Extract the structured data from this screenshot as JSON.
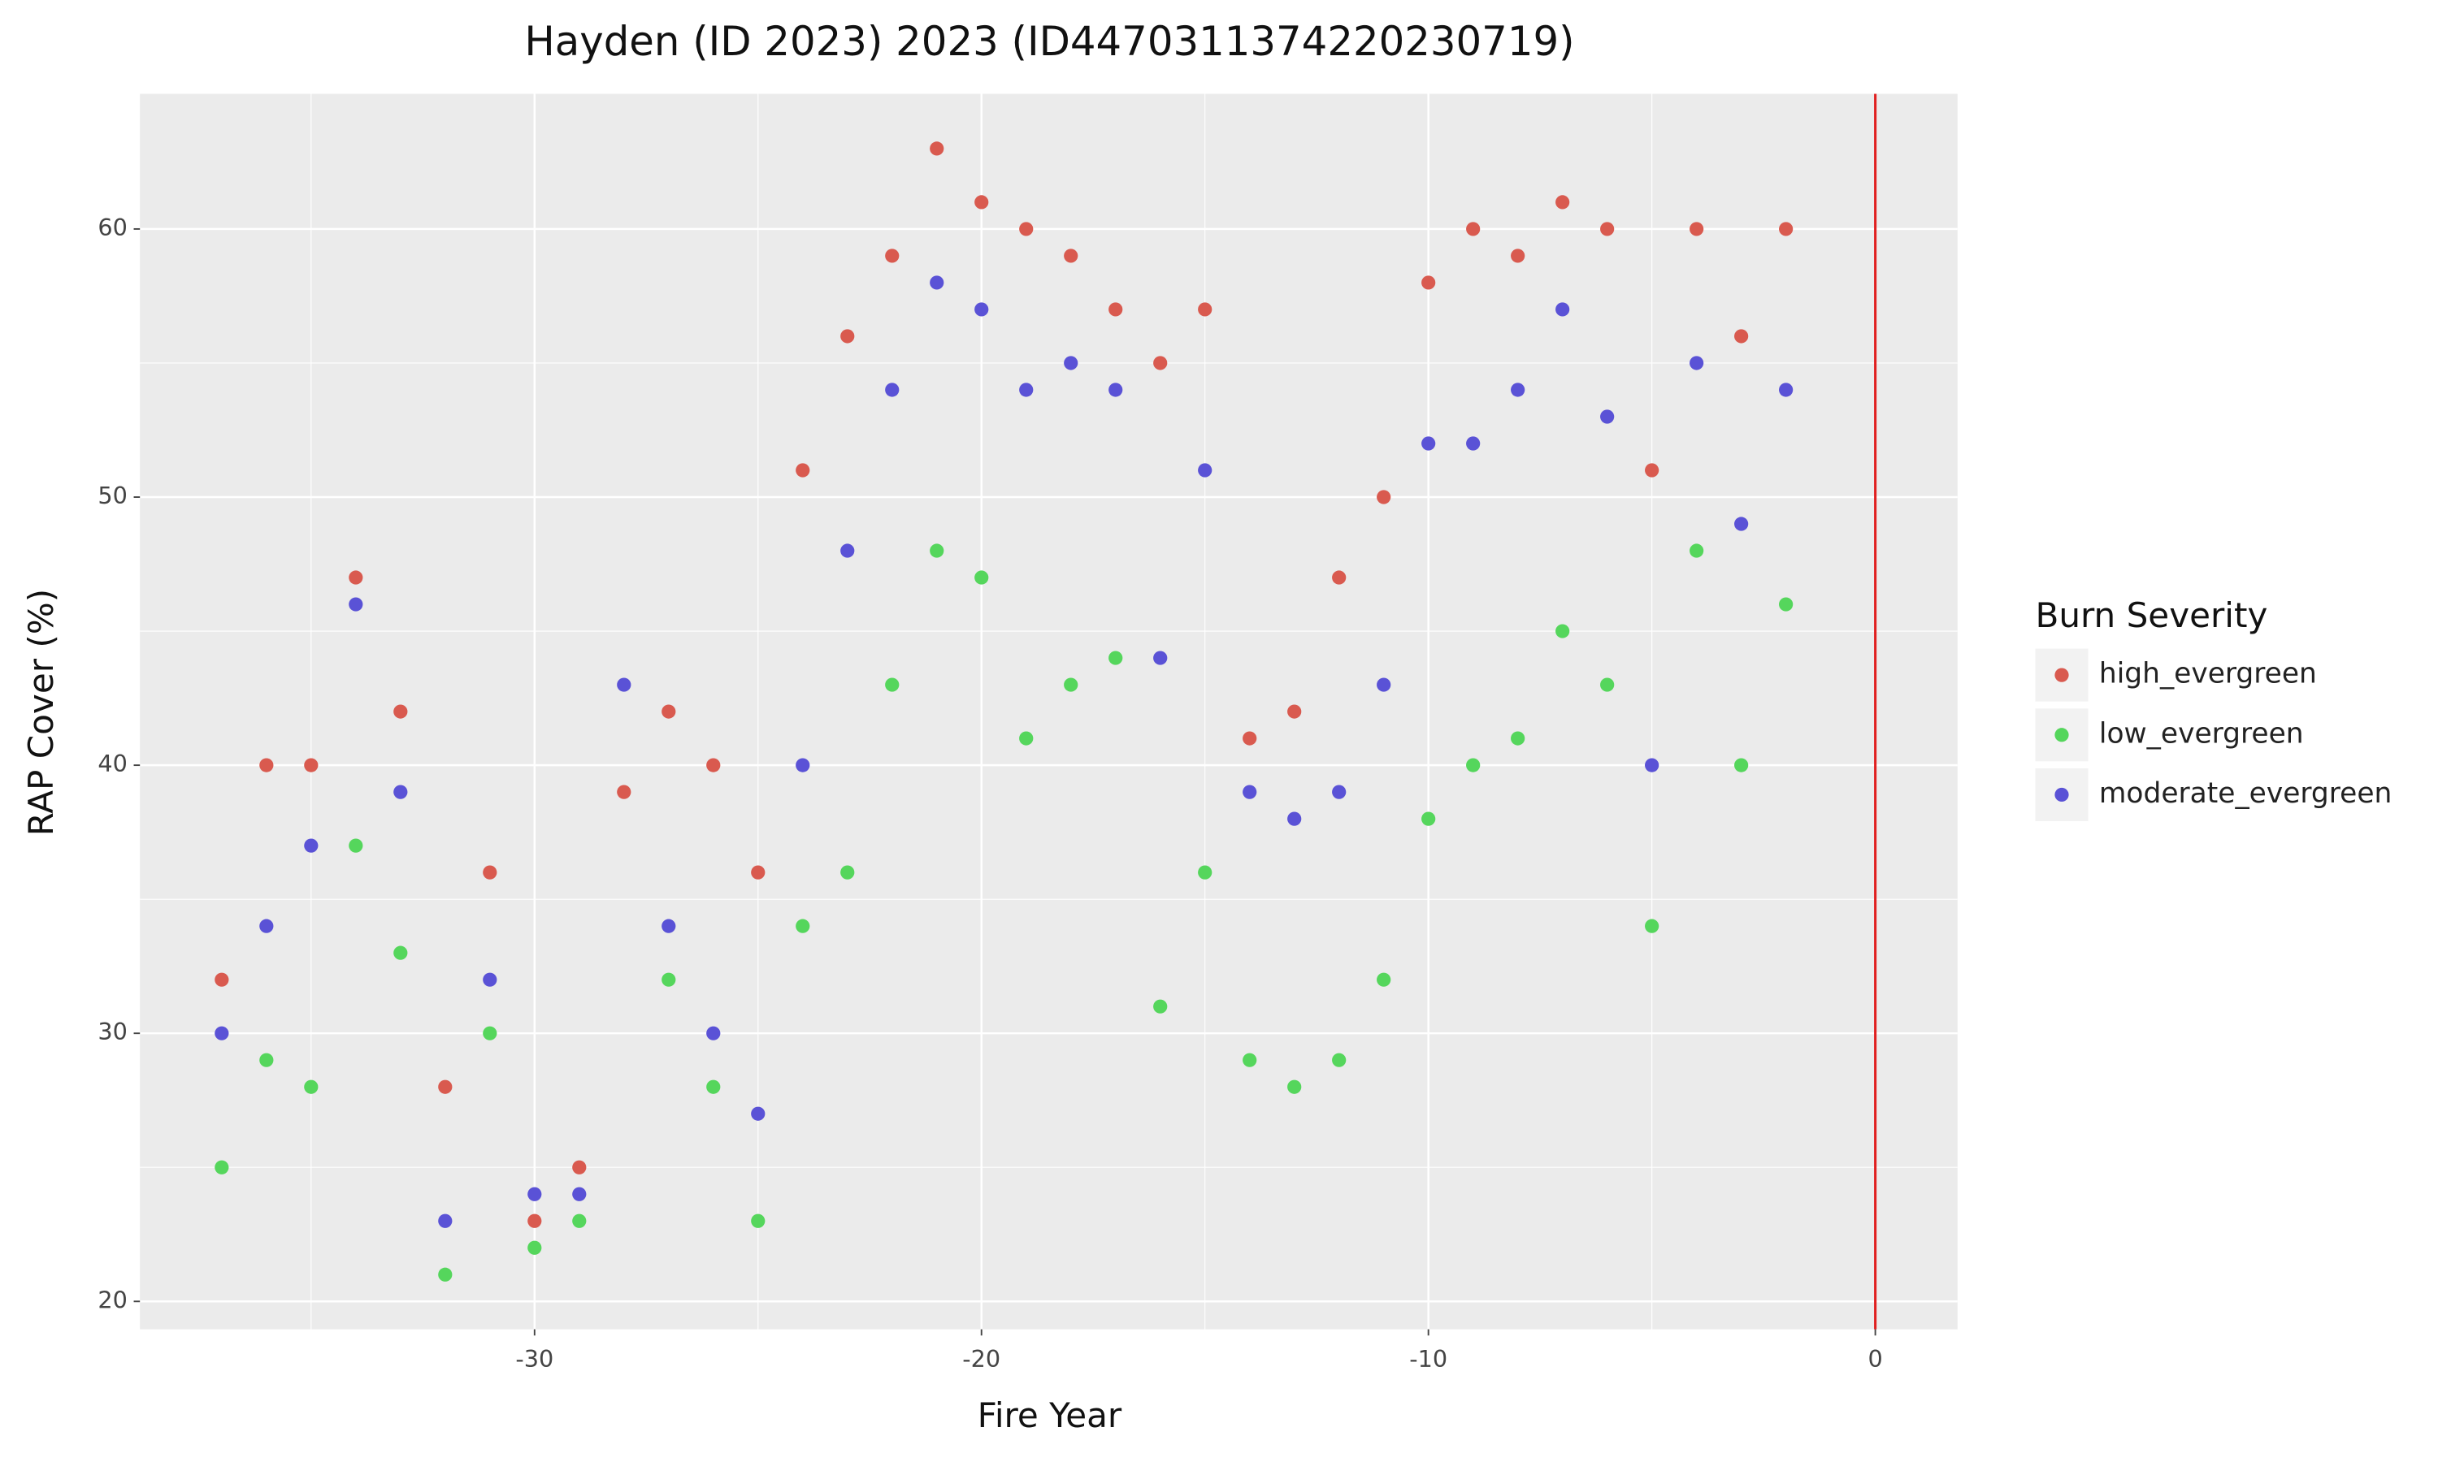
{
  "chart_data": {
    "type": "scatter",
    "title": "Hayden (ID 2023) 2023 (ID44703113742202307­19)",
    "x_label": "Fire Year",
    "y_label": "RAP Cover (%)",
    "legend_title": "Burn Severity",
    "legend_position": "right",
    "x": [
      -37,
      -36,
      -35,
      -34,
      -33,
      -32,
      -31,
      -30,
      -29,
      -28,
      -27,
      -26,
      -25,
      -24,
      -23,
      -22,
      -21,
      -20,
      -19,
      -18,
      -17,
      -16,
      -15,
      -14,
      -13,
      -12,
      -11,
      -10,
      -9,
      -8,
      -7,
      -6,
      -5,
      -4,
      -3,
      -2
    ],
    "series": [
      {
        "name": "high_evergreen",
        "color": "#d95a4f",
        "values": [
          32,
          40,
          40,
          47,
          42,
          28,
          36,
          23,
          25,
          39,
          42,
          40,
          36,
          51,
          56,
          59,
          63,
          61,
          60,
          59,
          57,
          55,
          57,
          41,
          42,
          47,
          50,
          58,
          60,
          59,
          61,
          60,
          51,
          60,
          56,
          60
        ]
      },
      {
        "name": "low_evergreen",
        "color": "#55d65c",
        "values": [
          25,
          29,
          28,
          37,
          33,
          21,
          30,
          22,
          23,
          null,
          32,
          28,
          23,
          34,
          36,
          43,
          48,
          47,
          41,
          43,
          44,
          31,
          36,
          29,
          28,
          29,
          32,
          38,
          40,
          41,
          45,
          43,
          34,
          48,
          40,
          46
        ]
      },
      {
        "name": "moderate_evergreen",
        "color": "#5a52d6",
        "values": [
          30,
          34,
          37,
          46,
          39,
          23,
          32,
          24,
          24,
          43,
          34,
          30,
          27,
          40,
          48,
          54,
          58,
          57,
          54,
          55,
          54,
          44,
          51,
          39,
          38,
          39,
          43,
          52,
          52,
          54,
          57,
          53,
          40,
          55,
          49,
          54
        ]
      }
    ],
    "xlim": [
      -38.83,
      1.84
    ],
    "ylim": [
      18.96,
      65.04
    ],
    "xticks": [
      -30,
      -20,
      -10,
      0
    ],
    "yticks": [
      20,
      30,
      40,
      50,
      60
    ],
    "grid": true,
    "vline": {
      "value": 0,
      "color": "#e02020"
    }
  }
}
